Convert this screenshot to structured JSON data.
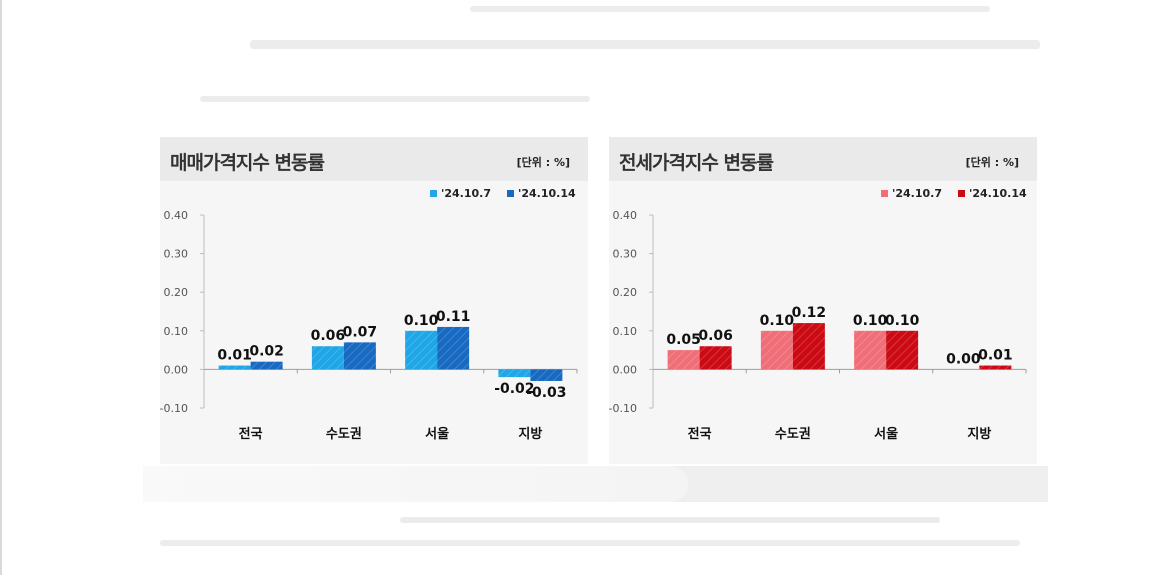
{
  "chart_data": [
    {
      "type": "bar",
      "title": "매매가격지수 변동률",
      "unit_note": "[단위 : %]",
      "categories": [
        "전국",
        "수도권",
        "서울",
        "지방"
      ],
      "series": [
        {
          "name": "'24.10.7",
          "values": [
            0.01,
            0.06,
            0.1,
            -0.02
          ],
          "labels": [
            "0.01",
            "0.06",
            "0.10",
            "-0.02"
          ],
          "color": "#1ea6e6"
        },
        {
          "name": "'24.10.14",
          "values": [
            0.02,
            0.07,
            0.11,
            -0.03
          ],
          "labels": [
            "0.02",
            "0.07",
            "0.11",
            "-0.03"
          ],
          "color": "#1769c2"
        }
      ],
      "yticks": [
        "0.40",
        "0.30",
        "0.20",
        "0.10",
        "0.00",
        "-0.10"
      ],
      "ylim": [
        -0.1,
        0.4
      ],
      "legend": "top-right",
      "grid": false
    },
    {
      "type": "bar",
      "title": "전세가격지수 변동률",
      "unit_note": "[단위 : %]",
      "categories": [
        "전국",
        "수도권",
        "서울",
        "지방"
      ],
      "series": [
        {
          "name": "'24.10.7",
          "values": [
            0.05,
            0.1,
            0.1,
            0.0
          ],
          "labels": [
            "0.05",
            "0.10",
            "0.10",
            "0.00"
          ],
          "color": "#f06e78"
        },
        {
          "name": "'24.10.14",
          "values": [
            0.06,
            0.12,
            0.1,
            0.01
          ],
          "labels": [
            "0.06",
            "0.12",
            "0.10",
            "0.01"
          ],
          "color": "#cc0a14"
        }
      ],
      "yticks": [
        "0.40",
        "0.30",
        "0.20",
        "0.10",
        "0.00",
        "-0.10"
      ],
      "ylim": [
        -0.1,
        0.4
      ],
      "legend": "top-right",
      "grid": false
    }
  ]
}
